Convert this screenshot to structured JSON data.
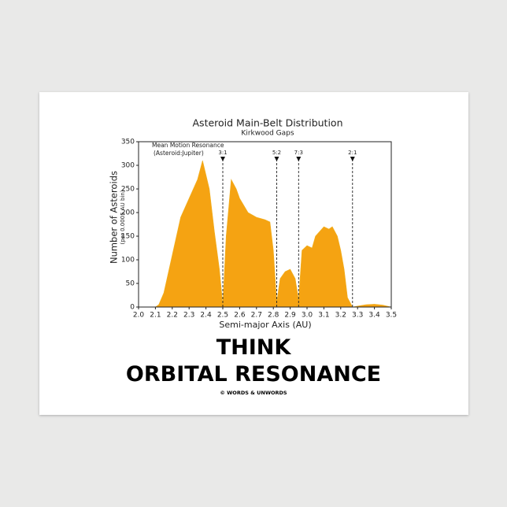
{
  "chart_data": {
    "type": "area",
    "title": "Asteroid Main-Belt Distribution",
    "subtitle": "Kirkwood Gaps",
    "x_label": "Semi-major Axis (AU)",
    "y_label": "Number of Asteroids",
    "y_sublabel": "(per 0.0005 AU bin)",
    "annotation": [
      "Mean Motion Resonance",
      "(Asteroid:Jupiter)"
    ],
    "color": "#f5a312",
    "x": [
      2.0,
      2.1,
      2.12,
      2.15,
      2.2,
      2.25,
      2.3,
      2.35,
      2.38,
      2.4,
      2.42,
      2.45,
      2.48,
      2.5,
      2.52,
      2.55,
      2.58,
      2.6,
      2.65,
      2.7,
      2.75,
      2.78,
      2.8,
      2.82,
      2.84,
      2.87,
      2.9,
      2.93,
      2.95,
      2.97,
      3.0,
      3.03,
      3.05,
      3.1,
      3.13,
      3.15,
      3.18,
      3.2,
      3.22,
      3.24,
      3.27,
      3.3,
      3.35,
      3.4,
      3.45,
      3.5
    ],
    "values": [
      0,
      0,
      5,
      30,
      110,
      190,
      230,
      270,
      310,
      280,
      250,
      160,
      80,
      5,
      150,
      270,
      250,
      230,
      200,
      190,
      185,
      180,
      120,
      10,
      60,
      75,
      80,
      60,
      15,
      120,
      130,
      125,
      150,
      170,
      165,
      170,
      150,
      120,
      80,
      20,
      0,
      2,
      5,
      6,
      4,
      0
    ],
    "resonances": [
      {
        "label": "3:1",
        "x": 2.5
      },
      {
        "label": "5:2",
        "x": 2.82
      },
      {
        "label": "7:3",
        "x": 2.95
      },
      {
        "label": "2:1",
        "x": 3.27
      }
    ],
    "xlim": [
      2.0,
      3.5
    ],
    "xticks": [
      {
        "value": 2,
        "label": "2.0"
      },
      2.1,
      2.2,
      2.3,
      2.4,
      2.5,
      2.6,
      2.7,
      2.8,
      2.9,
      {
        "value": 3,
        "label": "3.0"
      },
      3.1,
      3.2,
      3.3,
      3.4,
      3.5
    ],
    "ylim": [
      0,
      350
    ],
    "yticks": [
      0,
      50,
      100,
      150,
      200,
      250,
      300,
      350
    ]
  },
  "caption": [
    "THINK",
    "ORBITAL RESONANCE"
  ],
  "credit": "© WORDS & UNWORDS"
}
